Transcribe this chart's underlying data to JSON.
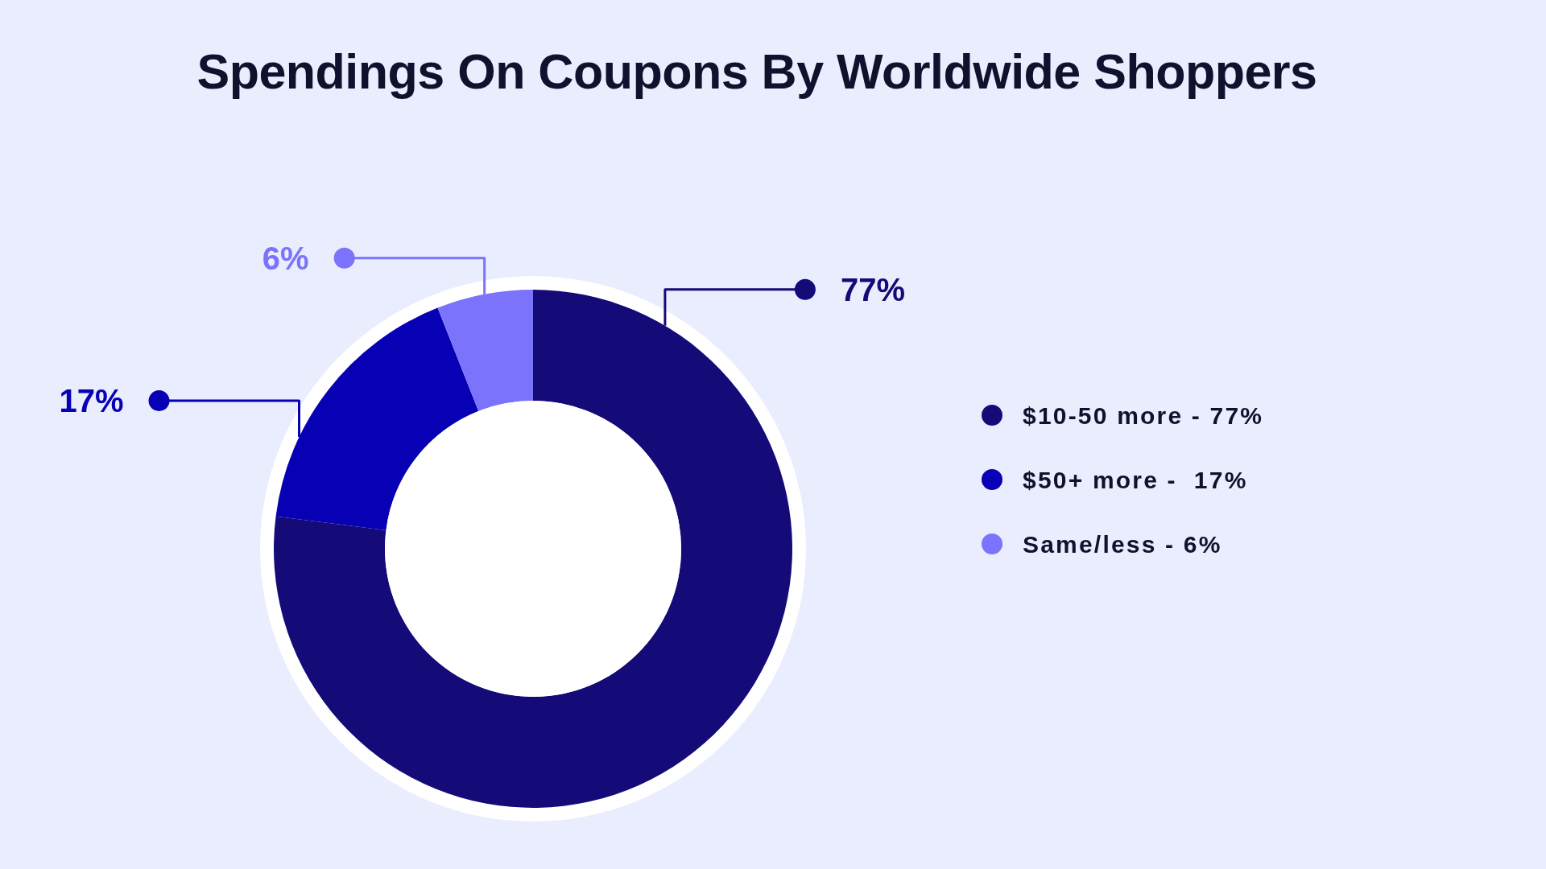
{
  "chart_data": {
    "type": "donut",
    "title": "Spendings On Coupons By Worldwide Shoppers",
    "categories": [
      "$10-50 more - 77%",
      "$50+ more -  17%",
      "Same/less - 6%"
    ],
    "values": [
      77,
      17,
      6
    ],
    "colors": [
      "#140a78",
      "#0800b4",
      "#7b73fb"
    ],
    "value_labels": [
      "77%",
      "17%",
      "6%"
    ],
    "legend": "right"
  }
}
